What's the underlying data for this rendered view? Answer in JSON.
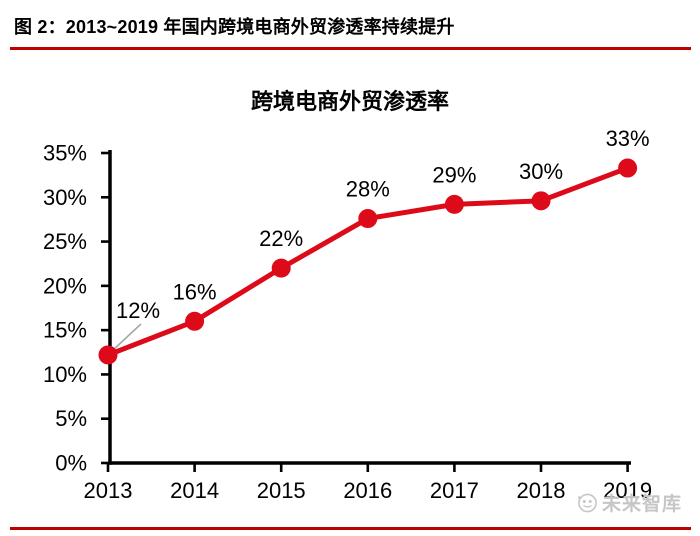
{
  "header": {
    "caption": "图 2：2013~2019 年国内跨境电商外贸渗透率持续提升"
  },
  "chart_data": {
    "type": "line",
    "title": "跨境电商外贸渗透率",
    "categories": [
      "2013",
      "2014",
      "2015",
      "2016",
      "2017",
      "2018",
      "2019"
    ],
    "values": [
      12,
      16,
      22,
      28,
      29,
      30,
      33
    ],
    "plot_values": [
      12.2,
      16.0,
      22.0,
      27.6,
      29.2,
      29.6,
      33.3
    ],
    "data_labels": [
      "12%",
      "16%",
      "22%",
      "28%",
      "29%",
      "30%",
      "33%"
    ],
    "y_ticks": [
      "0%",
      "5%",
      "10%",
      "15%",
      "20%",
      "25%",
      "30%",
      "35%"
    ],
    "y_tick_values": [
      0,
      5,
      10,
      15,
      20,
      25,
      30,
      35
    ],
    "ylim": [
      0,
      35
    ],
    "xlabel": "",
    "ylabel": "",
    "grid": false,
    "legend": "none",
    "line_color": "#dd0a1a",
    "marker_color": "#dd0a1a",
    "axis_color": "#000000",
    "label_color": "#000000",
    "leader_line_color": "#a8a8a8"
  },
  "watermark": {
    "text": "未来智库"
  },
  "colors": {
    "rule_red": "#c00000",
    "watermark_gray": "#c6c6c6"
  }
}
